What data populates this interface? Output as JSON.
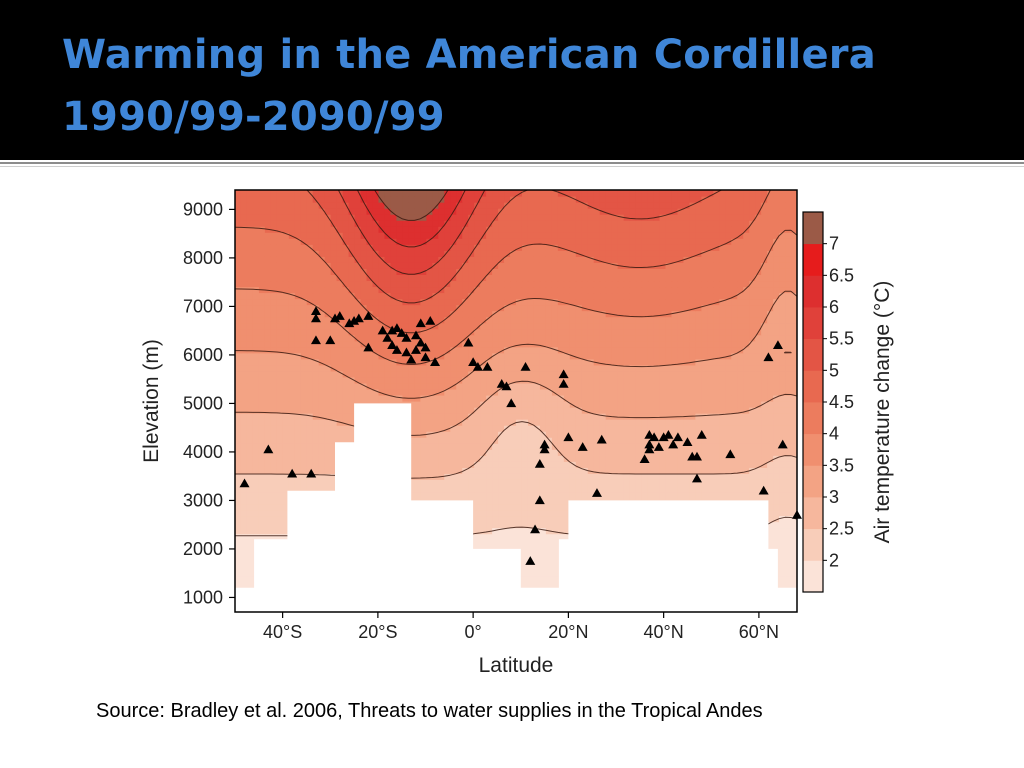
{
  "slide": {
    "title_line1": "Warming in the American Cordillera",
    "title_line2": "1990/99-2090/99",
    "source": "Source: Bradley et al. 2006, Threats to water supplies in the Tropical Andes"
  },
  "colors": {
    "title": "#3f86d8",
    "background_header": "#000000",
    "markers": "#000000",
    "colorbar": [
      "#fbe3d8",
      "#f8cdb9",
      "#f6b79d",
      "#f3a384",
      "#f08f6f",
      "#ec7c5e",
      "#e86950",
      "#e35545",
      "#e0413a",
      "#dd2f2f",
      "#e61c1c",
      "#9b5a47"
    ]
  },
  "chart_data": {
    "type": "heatmap",
    "subtype": "filled contour with station markers",
    "xlabel": "Latitude",
    "ylabel": "Elevation (m)",
    "colorbar_label": "Air temperature change (°C)",
    "xlim": [
      -50,
      68
    ],
    "ylim": [
      700,
      9400
    ],
    "x_ticks": [
      -40,
      -20,
      0,
      20,
      40,
      60
    ],
    "x_tick_labels": [
      "40°S",
      "20°S",
      "0°",
      "20°N",
      "40°N",
      "60°N"
    ],
    "y_ticks": [
      1000,
      2000,
      3000,
      4000,
      5000,
      6000,
      7000,
      8000,
      9000
    ],
    "y_tick_labels": [
      "1000",
      "2000",
      "3000",
      "4000",
      "5000",
      "6000",
      "7000",
      "8000",
      "9000"
    ],
    "colorbar_ticks": [
      2,
      2.5,
      3,
      3.5,
      4,
      4.5,
      5,
      5.5,
      6,
      6.5,
      7
    ],
    "colorbar_tick_labels": [
      "2",
      "2.5",
      "3",
      "3.5",
      "4",
      "4.5",
      "5",
      "5.5",
      "6",
      "6.5",
      "7"
    ],
    "field": {
      "description": "warming increases with elevation; maximum near 20°S aloft",
      "peak": {
        "lat": -13,
        "elev": 9400,
        "value": 7.4
      },
      "surface_min": 2.0
    },
    "terrain_mask": [
      [
        -50,
        1200
      ],
      [
        -46,
        1200
      ],
      [
        -46,
        2200
      ],
      [
        -39,
        2200
      ],
      [
        -39,
        3200
      ],
      [
        -29,
        3200
      ],
      [
        -29,
        4200
      ],
      [
        -25,
        4200
      ],
      [
        -25,
        5000
      ],
      [
        -13,
        5000
      ],
      [
        -13,
        3000
      ],
      [
        0,
        3000
      ],
      [
        0,
        2000
      ],
      [
        10,
        2000
      ],
      [
        10,
        1200
      ],
      [
        18,
        1200
      ],
      [
        18,
        2200
      ],
      [
        20,
        2200
      ],
      [
        20,
        3000
      ],
      [
        62,
        3000
      ],
      [
        62,
        2000
      ],
      [
        64,
        2000
      ],
      [
        64,
        1200
      ],
      [
        68,
        1200
      ],
      [
        68,
        700
      ],
      [
        -50,
        700
      ]
    ],
    "stations": [
      [
        -48,
        3350
      ],
      [
        -43,
        4050
      ],
      [
        -38,
        3550
      ],
      [
        -34,
        3550
      ],
      [
        -33,
        6900
      ],
      [
        -33,
        6750
      ],
      [
        -33,
        6300
      ],
      [
        -30,
        6300
      ],
      [
        -29,
        6750
      ],
      [
        -28,
        6800
      ],
      [
        -26,
        6650
      ],
      [
        -25,
        6700
      ],
      [
        -24,
        6750
      ],
      [
        -22,
        6800
      ],
      [
        -22,
        6150
      ],
      [
        -19,
        6500
      ],
      [
        -18,
        6350
      ],
      [
        -17,
        6500
      ],
      [
        -17,
        6200
      ],
      [
        -16,
        6550
      ],
      [
        -16,
        6100
      ],
      [
        -15,
        6450
      ],
      [
        -14,
        6350
      ],
      [
        -14,
        6050
      ],
      [
        -13,
        5900
      ],
      [
        -12,
        6400
      ],
      [
        -12,
        6100
      ],
      [
        -11,
        6650
      ],
      [
        -11,
        6250
      ],
      [
        -10,
        6150
      ],
      [
        -10,
        5950
      ],
      [
        -9,
        6700
      ],
      [
        -8,
        5850
      ],
      [
        -1,
        6250
      ],
      [
        0,
        5850
      ],
      [
        1,
        5750
      ],
      [
        3,
        5750
      ],
      [
        6,
        5400
      ],
      [
        7,
        5350
      ],
      [
        8,
        5000
      ],
      [
        11,
        5750
      ],
      [
        12,
        1750
      ],
      [
        13,
        2400
      ],
      [
        14,
        3000
      ],
      [
        14,
        3750
      ],
      [
        15,
        4150
      ],
      [
        15,
        4050
      ],
      [
        19,
        5600
      ],
      [
        19,
        5400
      ],
      [
        20,
        4300
      ],
      [
        23,
        4100
      ],
      [
        26,
        3150
      ],
      [
        27,
        4250
      ],
      [
        36,
        3850
      ],
      [
        37,
        4350
      ],
      [
        37,
        4150
      ],
      [
        37,
        4050
      ],
      [
        38,
        4300
      ],
      [
        39,
        4100
      ],
      [
        40,
        4300
      ],
      [
        41,
        4350
      ],
      [
        42,
        4150
      ],
      [
        43,
        4300
      ],
      [
        45,
        4200
      ],
      [
        46,
        3900
      ],
      [
        47,
        3900
      ],
      [
        47,
        3450
      ],
      [
        48,
        4350
      ],
      [
        54,
        3950
      ],
      [
        61,
        3200
      ],
      [
        62,
        5950
      ],
      [
        64,
        6200
      ],
      [
        65,
        4150
      ],
      [
        68,
        2700
      ]
    ]
  }
}
